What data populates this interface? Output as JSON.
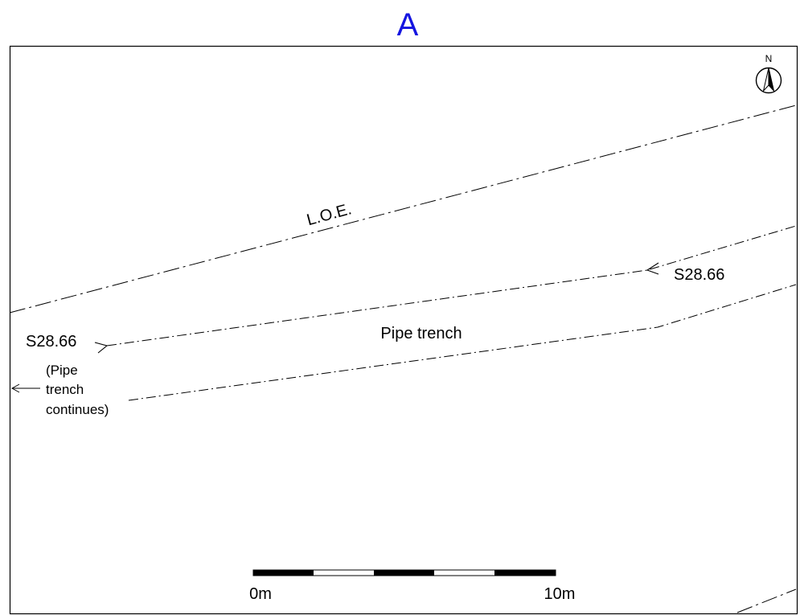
{
  "plan": {
    "title": "A",
    "title_color": "#1515e0",
    "north_label": "N",
    "loe_label": "L.O.E.",
    "section_label_right": "S28.66",
    "section_label_left": "S28.66",
    "feature_label": "Pipe trench",
    "note_lines": [
      "(Pipe",
      "trench",
      "continues)"
    ],
    "scale_start": "0m",
    "scale_end": "10m"
  }
}
